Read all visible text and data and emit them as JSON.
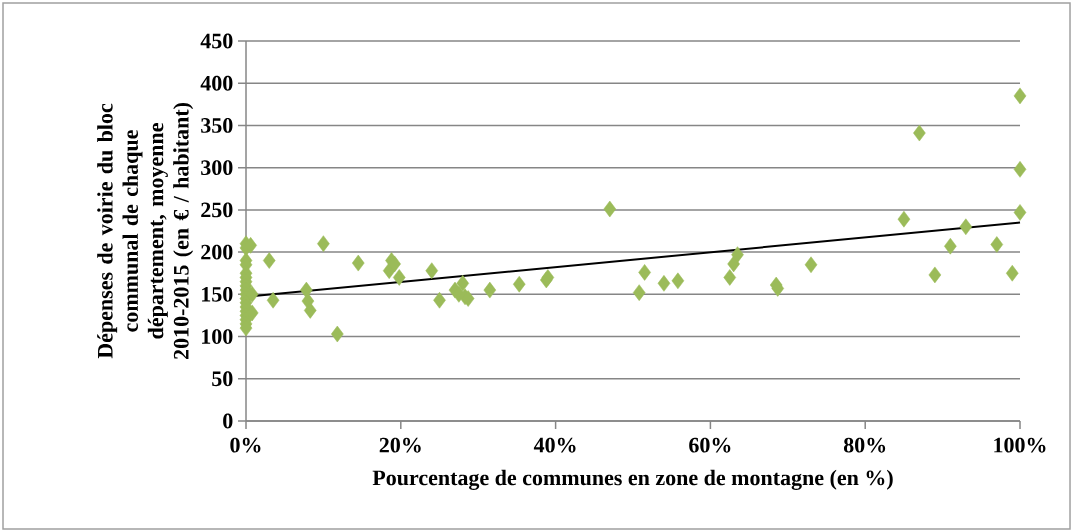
{
  "chart_data": {
    "type": "scatter",
    "xlabel": "Pourcentage de communes en zone de montagne (en %)",
    "ylabel": "Dépenses de voirie du bloc communal de chaque département, moyenne 2010-2015 (en € / habitant)",
    "xlim": [
      0,
      100
    ],
    "ylim": [
      0,
      450
    ],
    "xticks": [
      {
        "value": 0,
        "label": "0%"
      },
      {
        "value": 20,
        "label": "20%"
      },
      {
        "value": 40,
        "label": "40%"
      },
      {
        "value": 60,
        "label": "60%"
      },
      {
        "value": 80,
        "label": "80%"
      },
      {
        "value": 100,
        "label": "100%"
      }
    ],
    "yticks": [
      0,
      50,
      100,
      150,
      200,
      250,
      300,
      350,
      400,
      450
    ],
    "grid": "y",
    "marker": "diamond",
    "series": [
      {
        "color": "#9bbb59",
        "x": [
          0,
          0,
          0,
          0,
          0,
          0,
          0,
          0,
          0,
          0,
          0,
          0,
          0,
          0,
          0,
          0,
          0,
          0,
          0.6,
          0.8,
          0.8,
          3,
          3.5,
          7.8,
          8,
          8.3,
          10,
          11.8,
          14.5,
          18.5,
          18.8,
          19.2,
          19.8,
          24,
          25,
          27,
          27.5,
          28,
          28.3,
          28.7,
          31.5,
          35.3,
          38.8,
          39,
          47,
          50.8,
          51.5,
          54,
          55.8,
          62.5,
          63,
          63.5,
          68.5,
          68.7,
          73,
          85,
          87,
          89,
          91,
          93,
          97,
          99,
          100,
          100,
          100
        ],
        "values": [
          210,
          205,
          190,
          185,
          175,
          170,
          165,
          160,
          155,
          150,
          145,
          140,
          135,
          130,
          125,
          120,
          115,
          110,
          208,
          150,
          128,
          190,
          143,
          155,
          142,
          131,
          210,
          103,
          187,
          178,
          190,
          186,
          170,
          178,
          143,
          155,
          150,
          163,
          147,
          145,
          155,
          162,
          167,
          170,
          251,
          152,
          176,
          163,
          166,
          170,
          186,
          197,
          161,
          157,
          185,
          239,
          341,
          173,
          207,
          230,
          209,
          175,
          385,
          298,
          247
        ]
      },
      {
        "type": "line",
        "color": "#000000",
        "marker": "none",
        "x": [
          0,
          100
        ],
        "values": [
          147,
          235
        ]
      }
    ]
  }
}
